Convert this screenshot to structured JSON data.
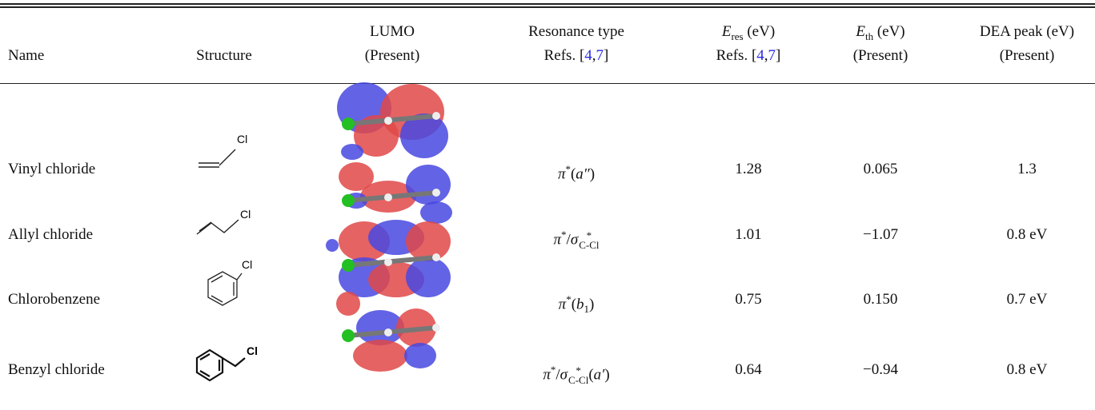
{
  "table": {
    "header": [
      {
        "lines": [
          [
            {
              "text": "Name"
            }
          ]
        ]
      },
      {
        "lines": [
          [
            {
              "text": "Structure"
            }
          ]
        ]
      },
      {
        "lines": [
          [
            {
              "text": "LUMO"
            }
          ],
          [
            {
              "text": "(Present)"
            }
          ]
        ]
      },
      {
        "lines": [
          [
            {
              "text": "Resonance type"
            }
          ],
          [
            {
              "text": "Refs. ["
            },
            {
              "ref": "4"
            },
            {
              "text": ","
            },
            {
              "ref": "7"
            },
            {
              "text": "]"
            }
          ]
        ]
      },
      {
        "lines": [
          [
            {
              "math": "E",
              "sub": "res"
            },
            {
              "text": " (eV)"
            }
          ],
          [
            {
              "text": "Refs. ["
            },
            {
              "ref": "4"
            },
            {
              "text": ","
            },
            {
              "ref": "7"
            },
            {
              "text": "]"
            }
          ]
        ]
      },
      {
        "lines": [
          [
            {
              "math": "E",
              "sub": "th"
            },
            {
              "text": " (eV)"
            }
          ],
          [
            {
              "text": "(Present)"
            }
          ]
        ]
      },
      {
        "lines": [
          [
            {
              "text": "DEA peak (eV)"
            }
          ],
          [
            {
              "text": "(Present)"
            }
          ]
        ]
      }
    ],
    "rows": [
      {
        "name": "Vinyl chloride",
        "structure_label": "Cl",
        "resonance": [
          {
            "math": "π"
          },
          {
            "sup": "*"
          },
          {
            "text": "("
          },
          {
            "math": "a″"
          },
          {
            "text": ")"
          }
        ],
        "e_res": "1.28",
        "e_th": "0.065",
        "dea_peak": "1.3"
      },
      {
        "name": "Allyl chloride",
        "structure_label": "Cl",
        "resonance": [
          {
            "math": "π"
          },
          {
            "sup": "*"
          },
          {
            "text": "/"
          },
          {
            "math": "σ"
          },
          {
            "sup": "*",
            "sub": "C-Cl"
          }
        ],
        "e_res": "1.01",
        "e_th": "−1.07",
        "dea_peak": "0.8 eV"
      },
      {
        "name": "Chlorobenzene",
        "structure_label": "Cl",
        "resonance": [
          {
            "math": "π"
          },
          {
            "sup": "*"
          },
          {
            "text": "("
          },
          {
            "math": "b",
            "sub": "1"
          },
          {
            "text": ")"
          }
        ],
        "e_res": "0.75",
        "e_th": "0.150",
        "dea_peak": "0.7 eV"
      },
      {
        "name": "Benzyl chloride",
        "structure_label": "Cl",
        "resonance": [
          {
            "math": "π"
          },
          {
            "sup": "*"
          },
          {
            "text": "/"
          },
          {
            "math": "σ"
          },
          {
            "sup": "*",
            "sub": "C-Cl"
          },
          {
            "text": "("
          },
          {
            "math": "a′"
          },
          {
            "text": ")"
          }
        ],
        "e_res": "0.64",
        "e_th": "−0.94",
        "dea_peak": "0.8 eV"
      }
    ]
  }
}
